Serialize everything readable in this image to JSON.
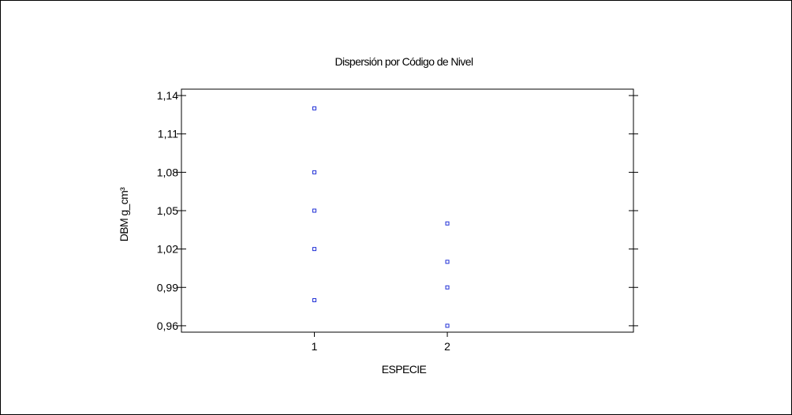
{
  "chart_data": {
    "type": "scatter",
    "title": "Dispersión por Código de Nivel",
    "xlabel": "ESPECIE",
    "ylabel": "DBM g_cm³",
    "categories": [
      "1",
      "2"
    ],
    "x_range": [
      0,
      3.4
    ],
    "ylim": [
      0.955,
      1.145
    ],
    "y_ticks": [
      0.96,
      0.99,
      1.02,
      1.05,
      1.08,
      1.11,
      1.14
    ],
    "y_tick_labels": [
      "0,96",
      "0,99",
      "1,02",
      "1,05",
      "1,08",
      "1,11",
      "1,14"
    ],
    "grid": false,
    "series": [
      {
        "points": [
          {
            "x": 1,
            "y": 1.13
          },
          {
            "x": 1,
            "y": 1.08
          },
          {
            "x": 1,
            "y": 1.05
          },
          {
            "x": 1,
            "y": 1.02
          },
          {
            "x": 1,
            "y": 0.98
          },
          {
            "x": 2,
            "y": 1.04
          },
          {
            "x": 2,
            "y": 1.01
          },
          {
            "x": 2,
            "y": 0.99
          },
          {
            "x": 2,
            "y": 0.96
          }
        ]
      }
    ],
    "colors": {
      "marker": "#1f2fd6",
      "axes": "#000000"
    }
  }
}
